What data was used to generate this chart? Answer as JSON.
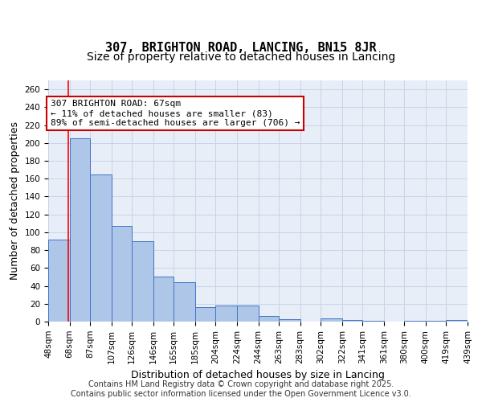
{
  "title": "307, BRIGHTON ROAD, LANCING, BN15 8JR",
  "subtitle": "Size of property relative to detached houses in Lancing",
  "xlabel": "Distribution of detached houses by size in Lancing",
  "ylabel": "Number of detached properties",
  "bar_values": [
    92,
    205,
    165,
    107,
    90,
    50,
    44,
    16,
    18,
    18,
    6,
    3,
    0,
    4,
    2,
    1,
    0,
    1,
    1,
    2
  ],
  "bin_edges": [
    48,
    68,
    87,
    107,
    126,
    146,
    165,
    185,
    204,
    224,
    244,
    263,
    283,
    302,
    322,
    341,
    361,
    380,
    400,
    419,
    439
  ],
  "tick_labels": [
    "48sqm",
    "68sqm",
    "87sqm",
    "107sqm",
    "126sqm",
    "146sqm",
    "165sqm",
    "185sqm",
    "204sqm",
    "224sqm",
    "244sqm",
    "263sqm",
    "283sqm",
    "302sqm",
    "322sqm",
    "341sqm",
    "361sqm",
    "380sqm",
    "400sqm",
    "419sqm",
    "439sqm"
  ],
  "bar_color": "#aec6e8",
  "bar_edge_color": "#4472c4",
  "red_line_x": 67,
  "ylim": [
    0,
    270
  ],
  "yticks": [
    0,
    20,
    40,
    60,
    80,
    100,
    120,
    140,
    160,
    180,
    200,
    220,
    240,
    260
  ],
  "grid_color": "#c8d4e8",
  "bg_color": "#e8eef8",
  "annotation_box_text": "307 BRIGHTON ROAD: 67sqm\n← 11% of detached houses are smaller (83)\n89% of semi-detached houses are larger (706) →",
  "annotation_box_color": "#ffffff",
  "annotation_box_edge_color": "#cc0000",
  "footer_text": "Contains HM Land Registry data © Crown copyright and database right 2025.\nContains public sector information licensed under the Open Government Licence v3.0.",
  "title_fontsize": 11,
  "subtitle_fontsize": 10,
  "xlabel_fontsize": 9,
  "ylabel_fontsize": 9,
  "tick_fontsize": 7.5,
  "annotation_fontsize": 8,
  "footer_fontsize": 7
}
